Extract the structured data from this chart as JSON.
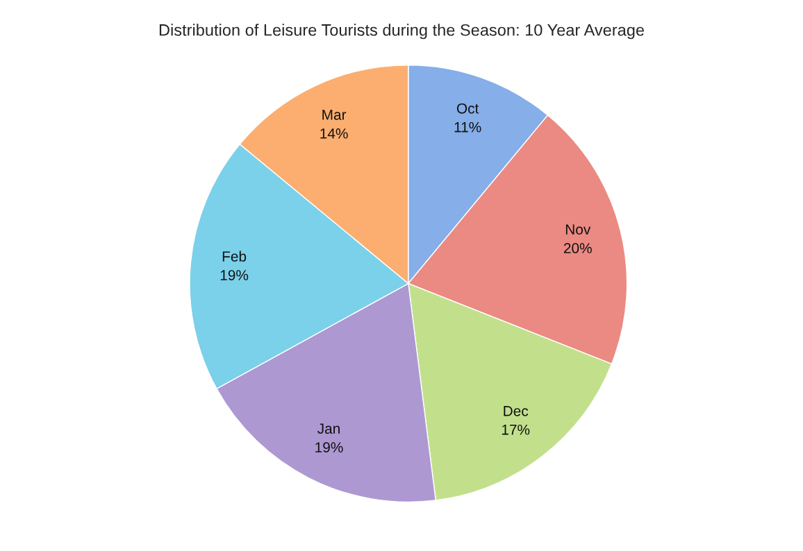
{
  "chart_data": {
    "type": "pie",
    "title": "Distribution of Leisure Tourists during the Season: 10 Year Average",
    "categories": [
      "Oct",
      "Nov",
      "Dec",
      "Jan",
      "Feb",
      "Mar"
    ],
    "values": [
      11,
      20,
      17,
      19,
      19,
      14
    ],
    "value_labels": [
      "11%",
      "20%",
      "17%",
      "19%",
      "19%",
      "14%"
    ],
    "colors": [
      "#86aee8",
      "#ea8a82",
      "#c2e08c",
      "#ad98d2",
      "#7bd0ea",
      "#fbae70"
    ],
    "legend": false
  }
}
